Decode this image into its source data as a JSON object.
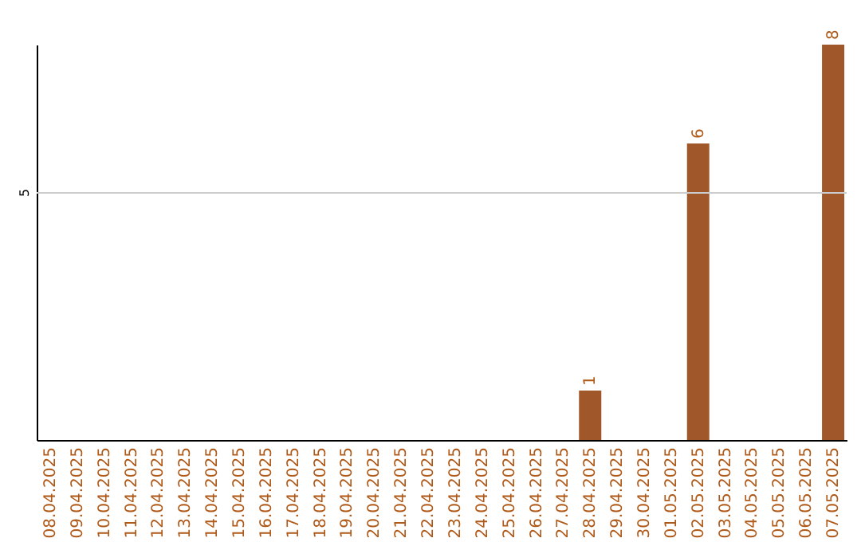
{
  "chart_data": {
    "type": "bar",
    "categories": [
      "08.04.2025",
      "09.04.2025",
      "10.04.2025",
      "11.04.2025",
      "12.04.2025",
      "13.04.2025",
      "14.04.2025",
      "15.04.2025",
      "16.04.2025",
      "17.04.2025",
      "18.04.2025",
      "19.04.2025",
      "20.04.2025",
      "21.04.2025",
      "22.04.2025",
      "23.04.2025",
      "24.04.2025",
      "25.04.2025",
      "26.04.2025",
      "27.04.2025",
      "28.04.2025",
      "29.04.2025",
      "30.04.2025",
      "01.05.2025",
      "02.05.2025",
      "03.05.2025",
      "04.05.2025",
      "05.05.2025",
      "06.05.2025",
      "07.05.2025"
    ],
    "values": [
      null,
      null,
      null,
      null,
      null,
      null,
      null,
      null,
      null,
      null,
      null,
      null,
      null,
      null,
      null,
      null,
      null,
      null,
      null,
      null,
      1,
      null,
      null,
      null,
      6,
      null,
      null,
      null,
      null,
      8
    ],
    "data_labels": true,
    "color": "#a0582a",
    "ylim": [
      0,
      8
    ],
    "ref_lines": [
      {
        "axis": "y",
        "value": 5,
        "label": "5",
        "color": "#cccccc"
      }
    ]
  }
}
